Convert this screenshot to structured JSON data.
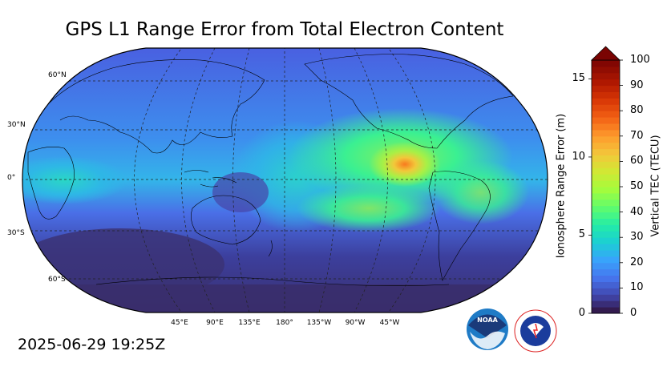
{
  "title": "GPS L1 Range Error from Total Electron Content",
  "timestamp": "2025-06-29 19:25Z",
  "map": {
    "projection": "robinson",
    "central_longitude": 180,
    "lat_labels": [
      "60°N",
      "30°N",
      "0°",
      "30°S",
      "60°S"
    ],
    "lon_labels": [
      "45°E",
      "90°E",
      "135°E",
      "180°",
      "135°W",
      "90°W",
      "45°W"
    ],
    "gridlines": true,
    "colormap": "turbo"
  },
  "colorbar": {
    "extend": "max",
    "left_axis": {
      "label": "Ionosphere Range Error (m)",
      "ticks": [
        "0",
        "5",
        "10",
        "15"
      ],
      "range": [
        0,
        16.2
      ]
    },
    "right_axis": {
      "label": "Vertical TEC (TECU)",
      "ticks": [
        "0",
        "10",
        "20",
        "30",
        "40",
        "50",
        "60",
        "70",
        "80",
        "90",
        "100"
      ],
      "range": [
        0,
        100
      ]
    },
    "extend_color": "#7a0403"
  },
  "logos": {
    "noaa": "NOAA",
    "nws": "NATIONAL WEATHER SERVICE"
  }
}
